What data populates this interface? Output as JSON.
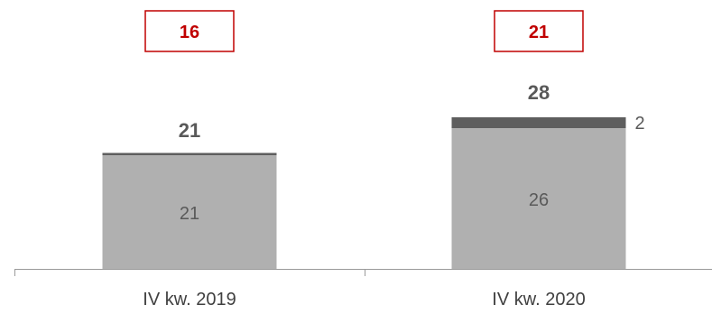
{
  "chart_data": {
    "type": "bar",
    "stacked": true,
    "categories": [
      "IV kw. 2019",
      "IV kw. 2020"
    ],
    "series": [
      {
        "values": [
          21,
          26
        ],
        "color": "#b0b0b0"
      },
      {
        "values": [
          0,
          2
        ],
        "color": "#5e5e5e"
      }
    ],
    "segment_labels": [
      [
        "21",
        "26"
      ],
      [
        "",
        "2"
      ]
    ],
    "totals": [
      21,
      28
    ],
    "total_labels": [
      "21",
      "28"
    ],
    "boxed_values": [
      "16",
      "21"
    ],
    "boxed_color": "#c00000",
    "ylim": [
      0,
      33
    ],
    "grid": false,
    "legend": false
  }
}
